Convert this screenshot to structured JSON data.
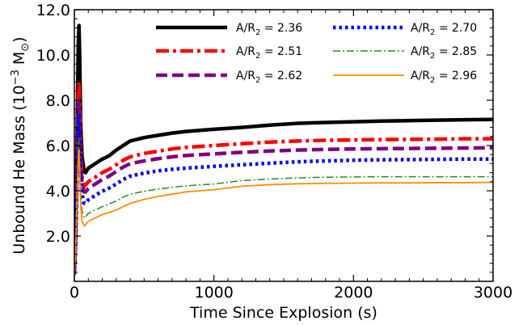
{
  "chart_data": {
    "type": "line",
    "xlabel": "Time  Since  Explosion (s)",
    "ylabel": "Unbound  He  Mass (10",
    "ylabel_sup": "−3",
    "ylabel_unit": " M",
    "ylabel_sub": "⊙",
    "ylabel_close": ")",
    "xlim": [
      0,
      3000
    ],
    "ylim": [
      0,
      12
    ],
    "xticks": [
      0,
      1000,
      2000,
      3000
    ],
    "xtick_labels": [
      "0",
      "1000",
      "2000",
      "3000"
    ],
    "yticks": [
      2,
      4,
      6,
      8,
      10,
      12
    ],
    "ytick_labels": [
      "2.0",
      "4.0",
      "6.0",
      "8.0",
      "10.0",
      "12.0"
    ],
    "grid": false,
    "legend_placement": "top-right",
    "series": [
      {
        "name": "A/R",
        "name_sub": "2",
        "name_suffix": " = 2.36",
        "color": "#000000",
        "style": "solid",
        "points": [
          [
            0,
            0.5
          ],
          [
            10,
            2.5
          ],
          [
            20,
            6.5
          ],
          [
            28,
            10.5
          ],
          [
            33,
            11.3
          ],
          [
            38,
            10.0
          ],
          [
            45,
            7.0
          ],
          [
            55,
            5.5
          ],
          [
            70,
            4.85
          ],
          [
            80,
            4.8
          ],
          [
            100,
            5.0
          ],
          [
            150,
            5.2
          ],
          [
            200,
            5.4
          ],
          [
            250,
            5.55
          ],
          [
            300,
            5.8
          ],
          [
            350,
            6.0
          ],
          [
            400,
            6.2
          ],
          [
            500,
            6.35
          ],
          [
            600,
            6.45
          ],
          [
            700,
            6.55
          ],
          [
            800,
            6.62
          ],
          [
            1000,
            6.72
          ],
          [
            1200,
            6.8
          ],
          [
            1400,
            6.9
          ],
          [
            1600,
            6.98
          ],
          [
            1800,
            7.02
          ],
          [
            2000,
            7.05
          ],
          [
            2200,
            7.08
          ],
          [
            2400,
            7.1
          ],
          [
            2600,
            7.12
          ],
          [
            2800,
            7.14
          ],
          [
            3000,
            7.15
          ]
        ]
      },
      {
        "name": "A/R",
        "name_sub": "2",
        "name_suffix": " = 2.51",
        "color": "#ff0000",
        "style": "dashdot-heavy",
        "points": [
          [
            0,
            0.4
          ],
          [
            10,
            2.0
          ],
          [
            20,
            5.5
          ],
          [
            28,
            8.3
          ],
          [
            33,
            8.8
          ],
          [
            38,
            7.8
          ],
          [
            45,
            5.8
          ],
          [
            55,
            4.6
          ],
          [
            70,
            4.2
          ],
          [
            80,
            4.25
          ],
          [
            100,
            4.4
          ],
          [
            150,
            4.6
          ],
          [
            200,
            4.8
          ],
          [
            250,
            4.95
          ],
          [
            300,
            5.15
          ],
          [
            350,
            5.35
          ],
          [
            400,
            5.5
          ],
          [
            500,
            5.65
          ],
          [
            600,
            5.75
          ],
          [
            700,
            5.85
          ],
          [
            800,
            5.92
          ],
          [
            1000,
            6.0
          ],
          [
            1200,
            6.08
          ],
          [
            1400,
            6.15
          ],
          [
            1600,
            6.2
          ],
          [
            1800,
            6.23
          ],
          [
            2000,
            6.25
          ],
          [
            2200,
            6.26
          ],
          [
            2400,
            6.27
          ],
          [
            2600,
            6.28
          ],
          [
            2800,
            6.3
          ],
          [
            3000,
            6.3
          ]
        ]
      },
      {
        "name": "A/R",
        "name_sub": "2",
        "name_suffix": " = 2.62",
        "color": "#800080",
        "style": "dashed",
        "points": [
          [
            0,
            0.4
          ],
          [
            10,
            2.0
          ],
          [
            20,
            5.2
          ],
          [
            28,
            7.6
          ],
          [
            33,
            8.0
          ],
          [
            38,
            7.0
          ],
          [
            45,
            5.3
          ],
          [
            55,
            4.3
          ],
          [
            70,
            3.95
          ],
          [
            80,
            3.95
          ],
          [
            100,
            4.1
          ],
          [
            150,
            4.3
          ],
          [
            200,
            4.5
          ],
          [
            250,
            4.65
          ],
          [
            300,
            4.85
          ],
          [
            350,
            5.05
          ],
          [
            400,
            5.2
          ],
          [
            500,
            5.32
          ],
          [
            600,
            5.42
          ],
          [
            700,
            5.5
          ],
          [
            800,
            5.56
          ],
          [
            1000,
            5.63
          ],
          [
            1200,
            5.7
          ],
          [
            1400,
            5.76
          ],
          [
            1600,
            5.8
          ],
          [
            1800,
            5.83
          ],
          [
            2000,
            5.85
          ],
          [
            2200,
            5.86
          ],
          [
            2400,
            5.87
          ],
          [
            2600,
            5.88
          ],
          [
            2800,
            5.89
          ],
          [
            3000,
            5.9
          ]
        ]
      },
      {
        "name": "A/R",
        "name_sub": "2",
        "name_suffix": " = 2.70",
        "color": "#0000ee",
        "style": "dotted",
        "points": [
          [
            0,
            0.3
          ],
          [
            10,
            1.8
          ],
          [
            20,
            4.8
          ],
          [
            28,
            7.0
          ],
          [
            33,
            7.4
          ],
          [
            38,
            6.4
          ],
          [
            45,
            4.8
          ],
          [
            55,
            3.85
          ],
          [
            70,
            3.45
          ],
          [
            80,
            3.45
          ],
          [
            100,
            3.6
          ],
          [
            150,
            3.8
          ],
          [
            200,
            3.98
          ],
          [
            250,
            4.12
          ],
          [
            300,
            4.3
          ],
          [
            350,
            4.5
          ],
          [
            400,
            4.65
          ],
          [
            500,
            4.78
          ],
          [
            600,
            4.88
          ],
          [
            700,
            4.95
          ],
          [
            800,
            5.0
          ],
          [
            1000,
            5.08
          ],
          [
            1200,
            5.15
          ],
          [
            1400,
            5.22
          ],
          [
            1600,
            5.28
          ],
          [
            1800,
            5.32
          ],
          [
            2000,
            5.35
          ],
          [
            2200,
            5.37
          ],
          [
            2400,
            5.38
          ],
          [
            2600,
            5.39
          ],
          [
            2800,
            5.4
          ],
          [
            3000,
            5.4
          ]
        ]
      },
      {
        "name": "A/R",
        "name_sub": "2",
        "name_suffix": " = 2.85",
        "color": "#228b22",
        "style": "dashdot-thin",
        "points": [
          [
            0,
            0.2
          ],
          [
            10,
            1.6
          ],
          [
            20,
            4.2
          ],
          [
            28,
            6.0
          ],
          [
            33,
            6.3
          ],
          [
            38,
            5.4
          ],
          [
            45,
            4.0
          ],
          [
            55,
            3.1
          ],
          [
            70,
            2.8
          ],
          [
            80,
            2.85
          ],
          [
            100,
            3.0
          ],
          [
            150,
            3.15
          ],
          [
            200,
            3.3
          ],
          [
            250,
            3.42
          ],
          [
            300,
            3.55
          ],
          [
            350,
            3.72
          ],
          [
            400,
            3.85
          ],
          [
            500,
            3.98
          ],
          [
            600,
            4.08
          ],
          [
            700,
            4.15
          ],
          [
            800,
            4.22
          ],
          [
            1000,
            4.3
          ],
          [
            1200,
            4.45
          ],
          [
            1400,
            4.52
          ],
          [
            1600,
            4.57
          ],
          [
            1800,
            4.6
          ],
          [
            2000,
            4.61
          ],
          [
            2200,
            4.62
          ],
          [
            2400,
            4.62
          ],
          [
            2600,
            4.62
          ],
          [
            2800,
            4.62
          ],
          [
            3000,
            4.62
          ]
        ]
      },
      {
        "name": "A/R",
        "name_sub": "2",
        "name_suffix": " = 2.96",
        "color": "#ff8c00",
        "style": "solid-thin",
        "points": [
          [
            0,
            0.2
          ],
          [
            10,
            1.4
          ],
          [
            20,
            3.8
          ],
          [
            28,
            5.5
          ],
          [
            33,
            5.8
          ],
          [
            38,
            4.9
          ],
          [
            45,
            3.4
          ],
          [
            55,
            2.65
          ],
          [
            70,
            2.45
          ],
          [
            80,
            2.5
          ],
          [
            100,
            2.65
          ],
          [
            150,
            2.8
          ],
          [
            200,
            2.95
          ],
          [
            250,
            3.05
          ],
          [
            300,
            3.15
          ],
          [
            350,
            3.3
          ],
          [
            400,
            3.45
          ],
          [
            500,
            3.62
          ],
          [
            600,
            3.75
          ],
          [
            700,
            3.85
          ],
          [
            800,
            3.95
          ],
          [
            1000,
            4.05
          ],
          [
            1200,
            4.2
          ],
          [
            1400,
            4.27
          ],
          [
            1600,
            4.31
          ],
          [
            1800,
            4.33
          ],
          [
            2000,
            4.34
          ],
          [
            2200,
            4.35
          ],
          [
            2400,
            4.35
          ],
          [
            2600,
            4.36
          ],
          [
            2800,
            4.36
          ],
          [
            3000,
            4.37
          ]
        ]
      }
    ]
  }
}
